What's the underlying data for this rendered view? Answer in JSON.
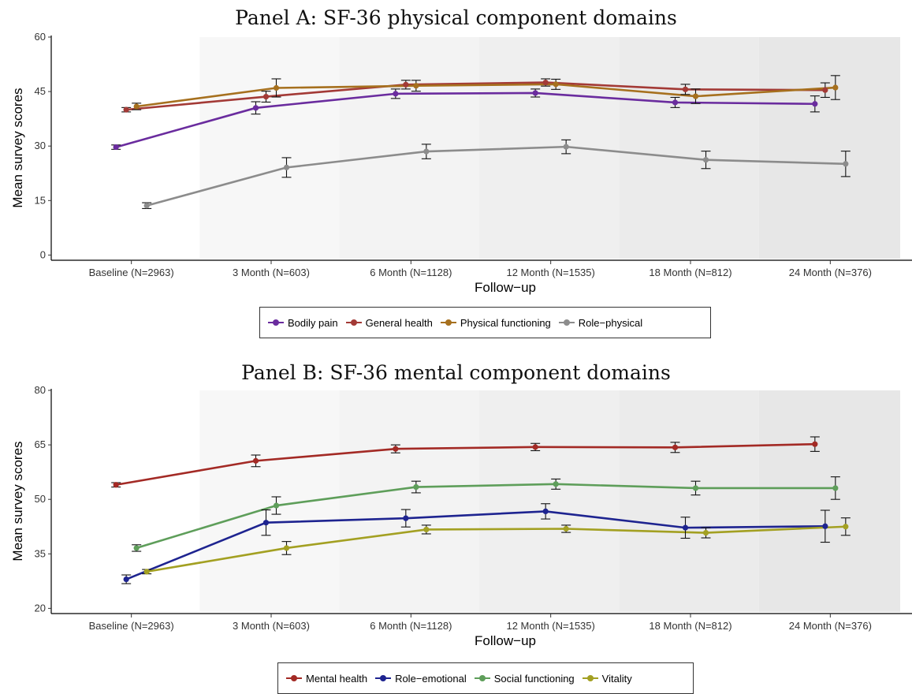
{
  "chart_data": [
    {
      "type": "line",
      "title": "Panel A: SF-36 physical component domains",
      "xlabel": "Follow−up",
      "ylabel": "Mean survey scores",
      "categories": [
        "Baseline (N=2963)",
        "3 Month (N=603)",
        "6 Month (N=1128)",
        "12 Month (N=1535)",
        "18 Month (N=812)",
        "24 Month (N=376)"
      ],
      "ylim": [
        -1,
        60
      ],
      "yticks": [
        0,
        15,
        30,
        45,
        60
      ],
      "error_bars": true,
      "grid": false,
      "legend_position": "bottom",
      "series": [
        {
          "name": "Bodily pain",
          "color": "#6A2C9E",
          "values": [
            29.7,
            40.5,
            44.4,
            44.6,
            42.0,
            41.6
          ],
          "error": [
            0.6,
            1.7,
            1.3,
            1.1,
            1.4,
            2.2
          ]
        },
        {
          "name": "General health",
          "color": "#A33A36",
          "values": [
            40.0,
            43.6,
            46.9,
            47.5,
            45.6,
            45.4
          ],
          "error": [
            0.6,
            1.5,
            1.2,
            1.0,
            1.4,
            2.0
          ]
        },
        {
          "name": "Physical functioning",
          "color": "#A6701E",
          "values": [
            40.9,
            46.0,
            46.6,
            47.0,
            43.7,
            46.1
          ],
          "error": [
            0.9,
            2.5,
            1.5,
            1.4,
            2.0,
            3.3
          ]
        },
        {
          "name": "Role−physical",
          "color": "#8C8C8C",
          "values": [
            13.6,
            24.1,
            28.5,
            29.8,
            26.2,
            25.1
          ],
          "error": [
            0.8,
            2.7,
            2.0,
            1.9,
            2.4,
            3.5
          ]
        }
      ]
    },
    {
      "type": "line",
      "title": "Panel B: SF-36 mental component domains",
      "xlabel": "Follow−up",
      "ylabel": "Mean survey scores",
      "categories": [
        "Baseline (N=2963)",
        "3 Month (N=603)",
        "6 Month (N=1128)",
        "12 Month (N=1535)",
        "18 Month (N=812)",
        "24 Month (N=376)"
      ],
      "ylim": [
        19,
        80
      ],
      "yticks": [
        20,
        35,
        50,
        65,
        80
      ],
      "error_bars": true,
      "grid": false,
      "legend_position": "bottom",
      "series": [
        {
          "name": "Mental health",
          "color": "#A32A25",
          "values": [
            54.0,
            60.6,
            63.9,
            64.4,
            64.3,
            65.2
          ],
          "error": [
            0.6,
            1.6,
            1.1,
            1.0,
            1.4,
            2.0
          ]
        },
        {
          "name": "Role−emotional",
          "color": "#1E2490",
          "values": [
            28.0,
            43.6,
            44.8,
            46.7,
            42.2,
            42.6
          ],
          "error": [
            1.2,
            3.5,
            2.4,
            2.1,
            2.9,
            4.4
          ]
        },
        {
          "name": "Social functioning",
          "color": "#5E9E5A",
          "values": [
            36.6,
            48.3,
            53.4,
            54.2,
            53.1,
            53.1
          ],
          "error": [
            0.9,
            2.4,
            1.6,
            1.4,
            1.9,
            3.1
          ]
        },
        {
          "name": "Vitality",
          "color": "#A3A022",
          "values": [
            30.1,
            36.6,
            41.7,
            41.9,
            40.8,
            42.5
          ],
          "error": [
            0.6,
            1.8,
            1.2,
            1.0,
            1.4,
            2.4
          ]
        }
      ]
    }
  ]
}
